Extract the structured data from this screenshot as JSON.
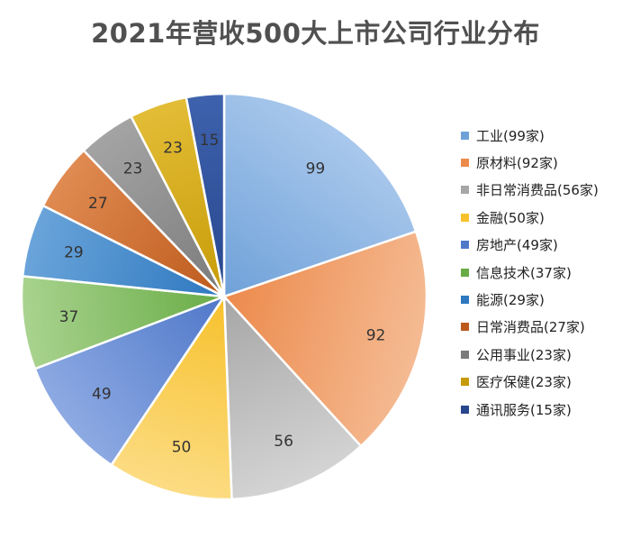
{
  "chart_data": {
    "type": "pie",
    "title": "2021年营收500大上市公司行业分布",
    "legend_position": "right",
    "slices": [
      {
        "value": 99,
        "legend": "工业(99家)",
        "color": "#6fa1d9",
        "color_light": "#a9c8ec"
      },
      {
        "value": 92,
        "legend": "原材料(92家)",
        "color": "#ec8a4c",
        "color_light": "#f5bb93"
      },
      {
        "value": 56,
        "legend": "非日常消费品(56家)",
        "color": "#a6a6a6",
        "color_light": "#d4d4d4"
      },
      {
        "value": 50,
        "legend": "金融(50家)",
        "color": "#f7c12c",
        "color_light": "#fcdc84"
      },
      {
        "value": 49,
        "legend": "房地产(49家)",
        "color": "#4f78c9",
        "color_light": "#8eaae3"
      },
      {
        "value": 37,
        "legend": "信息技术(37家)",
        "color": "#69ac46",
        "color_light": "#a9d38f"
      },
      {
        "value": 29,
        "legend": "能源(29家)",
        "color": "#2d78bf",
        "color_light": "#6aa4da"
      },
      {
        "value": 27,
        "legend": "日常消费品(27家)",
        "color": "#bd5a1c",
        "color_light": "#e08b52"
      },
      {
        "value": 23,
        "legend": "公用事业(23家)",
        "color": "#7b7b7b",
        "color_light": "#a4a4a4"
      },
      {
        "value": 23,
        "legend": "医疗保健(23家)",
        "color": "#c79b08",
        "color_light": "#e3bd36"
      },
      {
        "value": 15,
        "legend": "通讯服务(15家)",
        "color": "#28468e",
        "color_light": "#3e62ad"
      }
    ]
  }
}
